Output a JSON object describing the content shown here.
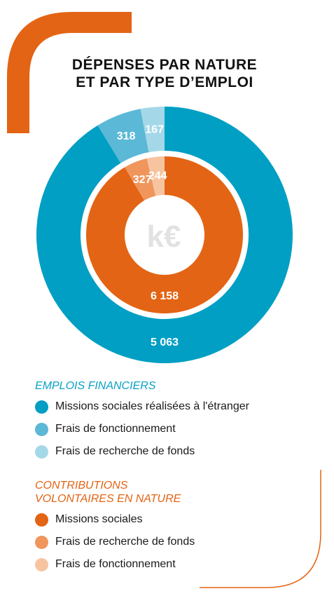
{
  "title": {
    "line1": "DÉPENSES PAR NATURE",
    "line2": "ET PAR TYPE D’EMPLOI"
  },
  "center_label": "k€",
  "colors": {
    "blue_dark": "#009fc3",
    "blue_mid": "#5bb8d6",
    "blue_light": "#a4d8e8",
    "orange_dark": "#e36414",
    "orange_mid": "#f0965c",
    "orange_light": "#f7c4a0",
    "accent_orange": "#e36414",
    "accent_blue": "#0aa0c6"
  },
  "chart_data": {
    "type": "pie",
    "unit": "k€",
    "rings": [
      {
        "ring": "outer",
        "group": "EMPLOIS FINANCIERS",
        "slices": [
          {
            "label": "Missions sociales réalisées à l'étranger",
            "value": 5063,
            "display": "5 063",
            "color": "#009fc3"
          },
          {
            "label": "Frais de fonctionnement",
            "value": 318,
            "display": "318",
            "color": "#5bb8d6"
          },
          {
            "label": "Frais de recherche de fonds",
            "value": 167,
            "display": "167",
            "color": "#a4d8e8"
          }
        ]
      },
      {
        "ring": "inner",
        "group": "CONTRIBUTIONS VOLONTAIRES EN NATURE",
        "slices": [
          {
            "label": "Missions sociales",
            "value": 6158,
            "display": "6 158",
            "color": "#e36414"
          },
          {
            "label": "Frais de recherche de fonds",
            "value": 327,
            "display": "327",
            "color": "#f0965c"
          },
          {
            "label": "Frais de fonctionnement",
            "value": 244,
            "display": "244",
            "color": "#f7c4a0"
          }
        ]
      }
    ]
  },
  "legend": {
    "financial": {
      "heading": "EMPLOIS FINANCIERS",
      "items": [
        {
          "label": "Missions sociales réalisées à l'étranger",
          "color": "#009fc3"
        },
        {
          "label": "Frais de fonctionnement",
          "color": "#5bb8d6"
        },
        {
          "label": "Frais de recherche de fonds",
          "color": "#a4d8e8"
        }
      ]
    },
    "in_kind": {
      "heading_line1": "CONTRIBUTIONS",
      "heading_line2": "VOLONTAIRES EN NATURE",
      "items": [
        {
          "label": "Missions sociales",
          "color": "#e36414"
        },
        {
          "label": "Frais de recherche de fonds",
          "color": "#f0965c"
        },
        {
          "label": "Frais de fonctionnement",
          "color": "#f7c4a0"
        }
      ]
    }
  }
}
